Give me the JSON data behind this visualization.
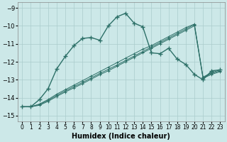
{
  "xlabel": "Humidex (Indice chaleur)",
  "bg_color": "#cce8e8",
  "grid_color": "#aacccc",
  "line_color": "#2d7068",
  "xlim": [
    -0.5,
    23.5
  ],
  "ylim": [
    -15.3,
    -8.7
  ],
  "xticks": [
    0,
    1,
    2,
    3,
    4,
    5,
    6,
    7,
    8,
    9,
    10,
    11,
    12,
    13,
    14,
    15,
    16,
    17,
    18,
    19,
    20,
    21,
    22,
    23
  ],
  "yticks": [
    -15,
    -14,
    -13,
    -12,
    -11,
    -10,
    -9
  ],
  "curve_x": [
    0,
    1,
    2,
    3,
    4,
    5,
    6,
    7,
    8,
    9,
    10,
    11,
    12,
    13,
    14,
    15,
    16,
    17,
    18,
    19,
    20,
    21,
    22,
    23
  ],
  "curve_y": [
    -14.5,
    -14.5,
    -14.1,
    -13.5,
    -12.4,
    -11.7,
    -11.1,
    -10.7,
    -10.65,
    -10.8,
    -10.0,
    -9.5,
    -9.3,
    -9.85,
    -10.05,
    -11.5,
    -11.55,
    -11.25,
    -11.85,
    -12.15,
    -12.7,
    -13.0,
    -12.5,
    -12.45
  ],
  "line1_x": [
    0,
    1,
    2,
    3,
    4,
    5,
    6,
    7,
    8,
    9,
    10,
    11,
    12,
    13,
    14,
    15,
    16,
    17,
    18,
    19,
    20,
    21,
    22,
    23
  ],
  "line1_y": [
    -14.5,
    -14.5,
    -14.35,
    -14.1,
    -13.8,
    -13.55,
    -13.3,
    -13.05,
    -12.8,
    -12.55,
    -12.3,
    -12.05,
    -11.8,
    -11.55,
    -11.3,
    -11.1,
    -10.85,
    -10.6,
    -10.35,
    -10.1,
    -9.9,
    -12.85,
    -12.6,
    -12.45
  ],
  "line2_x": [
    0,
    1,
    2,
    3,
    4,
    5,
    6,
    7,
    8,
    9,
    10,
    11,
    12,
    13,
    14,
    15,
    16,
    17,
    18,
    19,
    20,
    21,
    22,
    23
  ],
  "line2_y": [
    -14.5,
    -14.5,
    -14.38,
    -14.15,
    -13.87,
    -13.62,
    -13.38,
    -13.15,
    -12.9,
    -12.65,
    -12.42,
    -12.18,
    -11.93,
    -11.68,
    -11.43,
    -11.18,
    -10.93,
    -10.68,
    -10.43,
    -10.18,
    -9.93,
    -12.88,
    -12.65,
    -12.5
  ],
  "line3_x": [
    0,
    1,
    2,
    3,
    4,
    5,
    6,
    7,
    8,
    9,
    10,
    11,
    12,
    13,
    14,
    15,
    16,
    17,
    18,
    19,
    20,
    21,
    22,
    23
  ],
  "line3_y": [
    -14.5,
    -14.5,
    -14.42,
    -14.2,
    -13.93,
    -13.68,
    -13.45,
    -13.22,
    -12.97,
    -12.72,
    -12.5,
    -12.25,
    -12.0,
    -11.75,
    -11.5,
    -11.25,
    -11.0,
    -10.75,
    -10.5,
    -10.25,
    -10.0,
    -12.92,
    -12.7,
    -12.55
  ]
}
